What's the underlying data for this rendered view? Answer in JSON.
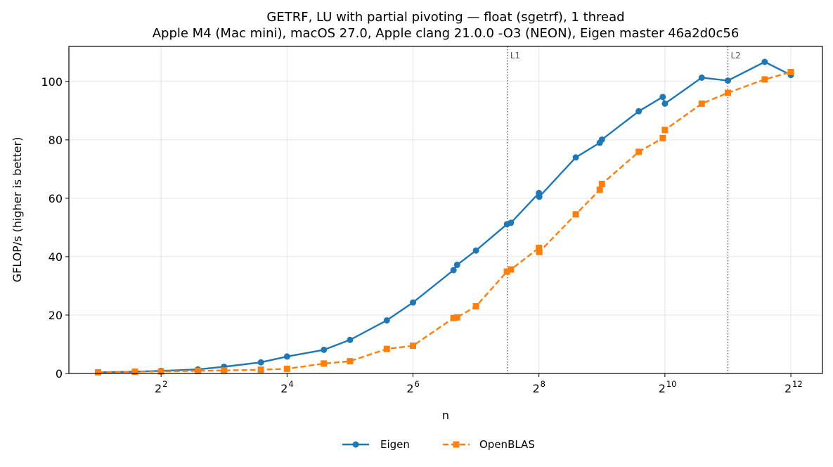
{
  "chart_data": {
    "type": "line",
    "title": "GETRF, LU with partial pivoting — float (sgetrf), 1 thread",
    "subtitle": "Apple M4 (Mac mini), macOS 27.0, Apple clang 21.0.0 -O3 (NEON), Eigen master 46a2d0c56",
    "xlabel": "n",
    "ylabel": "GFLOP/s (higher is better)",
    "xscale": "log2",
    "xlim": [
      1.45,
      5800
    ],
    "ylim": [
      0,
      112
    ],
    "grid": true,
    "legend_position": "bottom-center",
    "x_ticks": [
      {
        "value": 4,
        "base": "2",
        "exp": "2"
      },
      {
        "value": 16,
        "base": "2",
        "exp": "4"
      },
      {
        "value": 64,
        "base": "2",
        "exp": "6"
      },
      {
        "value": 256,
        "base": "2",
        "exp": "8"
      },
      {
        "value": 1024,
        "base": "2",
        "exp": "10"
      },
      {
        "value": 4096,
        "base": "2",
        "exp": "12"
      }
    ],
    "y_ticks": [
      0,
      20,
      40,
      60,
      80,
      100
    ],
    "reference_lines": [
      {
        "label": "L1",
        "x": 181
      },
      {
        "label": "L2",
        "x": 2048
      }
    ],
    "series": [
      {
        "name": "Eigen",
        "color": "#1f77b4",
        "marker": "circle",
        "line_style": "solid",
        "x": [
          2,
          3,
          4,
          6,
          8,
          12,
          16,
          24,
          32,
          48,
          64,
          100,
          104,
          128,
          180,
          188,
          256,
          257,
          384,
          500,
          512,
          768,
          1000,
          1024,
          1536,
          2048,
          3072,
          4096
        ],
        "y": [
          0.4,
          0.6,
          0.9,
          1.4,
          2.3,
          3.8,
          5.8,
          8.1,
          11.5,
          18.2,
          24.3,
          35.4,
          37.2,
          42.1,
          51.1,
          51.6,
          61.8,
          60.5,
          74.0,
          79.0,
          80.1,
          89.8,
          94.7,
          92.4,
          101.3,
          100.3,
          106.7,
          102.2
        ]
      },
      {
        "name": "OpenBLAS",
        "color": "#ff7f0e",
        "marker": "square",
        "line_style": "dashed",
        "x": [
          2,
          3,
          4,
          6,
          8,
          12,
          16,
          24,
          32,
          48,
          64,
          100,
          104,
          128,
          180,
          188,
          256,
          257,
          384,
          500,
          512,
          768,
          1000,
          1024,
          1536,
          2048,
          3072,
          4096
        ],
        "y": [
          0.4,
          0.6,
          0.7,
          0.9,
          1.0,
          1.3,
          1.6,
          3.4,
          4.2,
          8.4,
          9.5,
          19.0,
          19.2,
          23.0,
          34.9,
          35.6,
          43.0,
          41.6,
          54.5,
          62.9,
          64.9,
          75.9,
          80.6,
          83.4,
          92.4,
          96.1,
          100.7,
          103.2
        ]
      }
    ]
  }
}
